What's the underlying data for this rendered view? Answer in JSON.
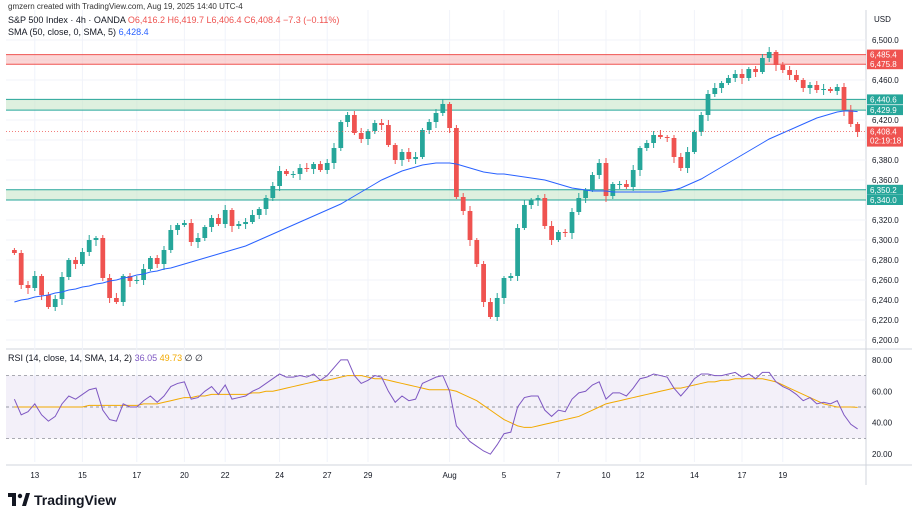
{
  "header": {
    "creator": "gmzern created with TradingView.com, Aug 19, 2025 14:40 UTC-4",
    "symbol": "S&P 500 Index · 4h · OANDA",
    "ohlc": "O6,416.2  H6,419.7  L6,406.4  C6,408.4  −7.3 (−0.11%)",
    "sma_label": "SMA (50, close, 0, SMA, 5)",
    "sma_value": "6,428.4",
    "rsi_label": "RSI (14, close, 14, SMA, 14, 2)",
    "rsi_value": "36.05",
    "rsi_sma_value": "49.73",
    "rsi_extra": "∅ ∅"
  },
  "footer": {
    "brand": "TradingView"
  },
  "colors": {
    "up": "#26a69a",
    "down": "#ef5350",
    "sma": "#2962ff",
    "rsi": "#7e57c2",
    "rsi_sma": "#f2a900",
    "resistance": "#f8bbbb",
    "support": "#c8e6c9"
  },
  "chart_data": [
    {
      "type": "candlestick",
      "title": "S&P 500 Index · 4h · OANDA",
      "currency": "USD",
      "ylim": [
        6195,
        6510
      ],
      "y_ticks": [
        "6,500.0",
        "6,480.0",
        "6,460.0",
        "6,440.0",
        "6,420.0",
        "6,400.0",
        "6,380.0",
        "6,360.0",
        "6,340.0",
        "6,320.0",
        "6,300.0",
        "6,280.0",
        "6,260.0",
        "6,240.0",
        "6,220.0",
        "6,200.0"
      ],
      "x_ticks": [
        {
          "label": "13",
          "i": 3
        },
        {
          "label": "15",
          "i": 10
        },
        {
          "label": "17",
          "i": 18
        },
        {
          "label": "20",
          "i": 25
        },
        {
          "label": "22",
          "i": 31
        },
        {
          "label": "24",
          "i": 39
        },
        {
          "label": "27",
          "i": 46
        },
        {
          "label": "29",
          "i": 52
        },
        {
          "label": "Aug",
          "i": 64
        },
        {
          "label": "5",
          "i": 72
        },
        {
          "label": "7",
          "i": 80
        },
        {
          "label": "10",
          "i": 87
        },
        {
          "label": "12",
          "i": 92
        },
        {
          "label": "14",
          "i": 100
        },
        {
          "label": "17",
          "i": 107
        },
        {
          "label": "19",
          "i": 113
        }
      ],
      "zones": [
        {
          "name": "resistance",
          "top": 6485.4,
          "bottom": 6475.8,
          "label_top": "6,485.4",
          "label_bottom": "6,475.8"
        },
        {
          "name": "support-upper",
          "top": 6440.6,
          "bottom": 6429.9,
          "label_top": "6,440.6",
          "label_bottom": "6,429.9"
        },
        {
          "name": "support-lower",
          "top": 6350.2,
          "bottom": 6340.0,
          "label_top": "6,350.2",
          "label_bottom": "6,340.0"
        }
      ],
      "last_price": {
        "value": 6408.4,
        "label": "6,408.4",
        "countdown": "02:19:18"
      },
      "closes": [
        6287,
        6255,
        6252,
        6264,
        6245,
        6233,
        6241,
        6263,
        6280,
        6276,
        6288,
        6300,
        6302,
        6262,
        6242,
        6238,
        6264,
        6259,
        6260,
        6271,
        6282,
        6276,
        6290,
        6310,
        6315,
        6317,
        6298,
        6302,
        6313,
        6322,
        6316,
        6330,
        6314,
        6316,
        6318,
        6325,
        6331,
        6342,
        6354,
        6369,
        6366,
        6366,
        6372,
        6371,
        6376,
        6370,
        6377,
        6392,
        6418,
        6425,
        6407,
        6401,
        6409,
        6417,
        6415,
        6395,
        6380,
        6388,
        6381,
        6383,
        6410,
        6418,
        6427,
        6436,
        6412,
        6343,
        6329,
        6300,
        6276,
        6238,
        6223,
        6242,
        6262,
        6264,
        6312,
        6335,
        6340,
        6342,
        6314,
        6300,
        6308,
        6307,
        6328,
        6342,
        6350,
        6365,
        6377,
        6344,
        6356,
        6356,
        6353,
        6370,
        6392,
        6397,
        6405,
        6403,
        6402,
        6383,
        6372,
        6388,
        6408,
        6425,
        6446,
        6452,
        6457,
        6462,
        6466,
        6462,
        6471,
        6468,
        6482,
        6488,
        6475,
        6470,
        6465,
        6460,
        6452,
        6455,
        6450,
        6451,
        6449,
        6453,
        6430,
        6416,
        6408
      ],
      "series": [
        {
          "name": "SMA (50, close, 0, SMA, 5)",
          "values": [
            6238,
            6240,
            6241,
            6243,
            6244,
            6245,
            6247,
            6248,
            6250,
            6251,
            6253,
            6254,
            6256,
            6257,
            6259,
            6260,
            6262,
            6263,
            6265,
            6266,
            6268,
            6269,
            6271,
            6272,
            6274,
            6276,
            6278,
            6280,
            6282,
            6284,
            6286,
            6288,
            6290,
            6292,
            6294,
            6297,
            6300,
            6303,
            6306,
            6309,
            6312,
            6315,
            6318,
            6321,
            6324,
            6327,
            6330,
            6333,
            6336,
            6340,
            6344,
            6348,
            6352,
            6356,
            6360,
            6363,
            6366,
            6369,
            6371,
            6373,
            6375,
            6376,
            6377,
            6377,
            6377,
            6376,
            6374,
            6372,
            6370,
            6368,
            6367,
            6366,
            6366,
            6365,
            6364,
            6363,
            6362,
            6361,
            6360,
            6358,
            6356,
            6354,
            6352,
            6351,
            6350,
            6349,
            6349,
            6349,
            6348,
            6348,
            6348,
            6348,
            6348,
            6348,
            6348,
            6348,
            6349,
            6350,
            6352,
            6355,
            6358,
            6361,
            6365,
            6369,
            6373,
            6377,
            6381,
            6385,
            6389,
            6393,
            6397,
            6401,
            6404,
            6407,
            6410,
            6413,
            6416,
            6419,
            6422,
            6424,
            6426,
            6428,
            6429,
            6429,
            6428.4
          ]
        }
      ]
    },
    {
      "type": "line",
      "title": "RSI (14, close, 14, SMA, 14, 2)",
      "ylim": [
        15,
        85
      ],
      "y_ticks": [
        "80.00",
        "60.00",
        "40.00",
        "20.00"
      ],
      "bands": {
        "upper": 70,
        "middle": 50,
        "lower": 30
      },
      "series": [
        {
          "name": "RSI",
          "values": [
            55,
            45,
            47,
            52,
            45,
            41,
            44,
            52,
            57,
            55,
            58,
            61,
            62,
            48,
            42,
            41,
            52,
            50,
            50,
            54,
            57,
            53,
            57,
            63,
            65,
            66,
            55,
            56,
            60,
            63,
            58,
            64,
            55,
            56,
            57,
            60,
            62,
            65,
            68,
            71,
            69,
            69,
            70,
            69,
            71,
            67,
            70,
            75,
            80,
            80,
            70,
            65,
            67,
            70,
            69,
            60,
            53,
            57,
            54,
            55,
            65,
            67,
            69,
            70,
            60,
            38,
            33,
            28,
            25,
            22,
            20,
            26,
            33,
            34,
            50,
            56,
            57,
            57,
            48,
            44,
            48,
            47,
            55,
            59,
            60,
            64,
            66,
            55,
            59,
            59,
            57,
            62,
            68,
            69,
            71,
            70,
            69,
            62,
            57,
            62,
            68,
            71,
            71,
            70,
            70,
            71,
            72,
            69,
            71,
            68,
            72,
            72,
            66,
            63,
            61,
            58,
            54,
            56,
            52,
            53,
            52,
            54,
            45,
            39,
            36.05
          ]
        },
        {
          "name": "RSI-based MA",
          "values": [
            50,
            50,
            50,
            50,
            50,
            50,
            50,
            50,
            50,
            50,
            50,
            51,
            51,
            51,
            51,
            51,
            51,
            51,
            51,
            52,
            52,
            52,
            53,
            54,
            55,
            56,
            56,
            57,
            57,
            58,
            58,
            58,
            58,
            58,
            58,
            59,
            59,
            60,
            60,
            61,
            62,
            63,
            64,
            65,
            66,
            67,
            67,
            68,
            69,
            70,
            70,
            70,
            69,
            68,
            68,
            67,
            66,
            65,
            64,
            63,
            62,
            61,
            61,
            61,
            61,
            60,
            58,
            56,
            54,
            51,
            48,
            45,
            42,
            40,
            38,
            37,
            37,
            38,
            39,
            40,
            41,
            42,
            43,
            44,
            46,
            48,
            50,
            52,
            53,
            54,
            55,
            56,
            57,
            58,
            59,
            60,
            61,
            62,
            62,
            63,
            64,
            65,
            66,
            66,
            67,
            67,
            68,
            68,
            68,
            68,
            68,
            67,
            66,
            64,
            62,
            60,
            58,
            56,
            54,
            52,
            51,
            50,
            50,
            50,
            49.73
          ]
        }
      ]
    }
  ]
}
